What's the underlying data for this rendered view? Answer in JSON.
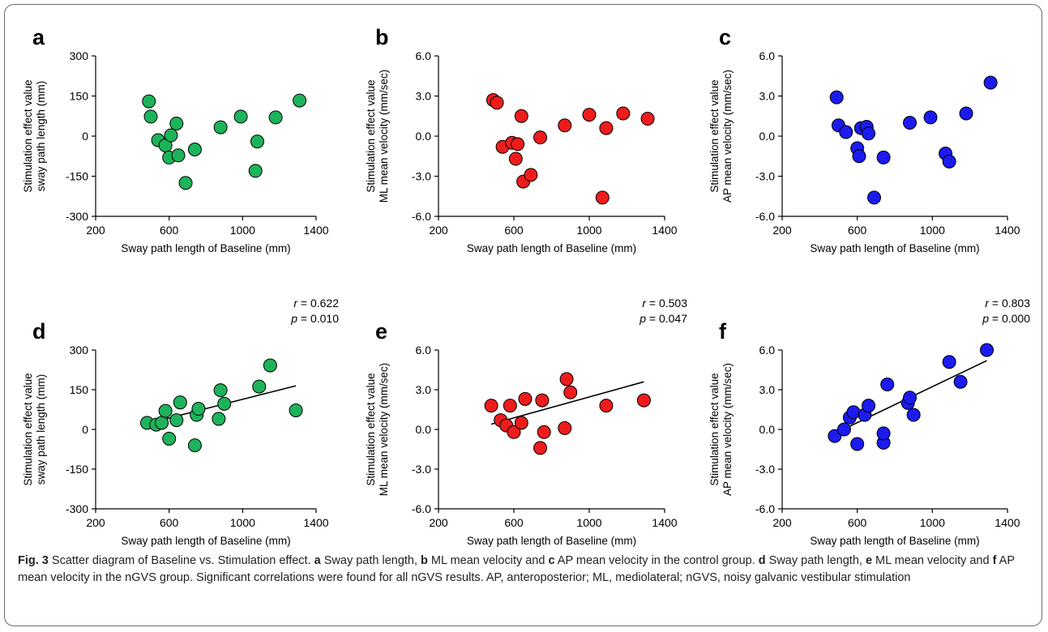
{
  "caption": {
    "fig_label": "Fig. 3",
    "intro": " Scatter diagram of Baseline vs. Stimulation effect. ",
    "a": "a",
    "a_text": " Sway path length, ",
    "b": "b",
    "b_text": " ML mean velocity and ",
    "c": "c",
    "c_text": " AP mean velocity in the control group. ",
    "d": "d",
    "d_text": " Sway path length, ",
    "e": "e",
    "e_text": " ML mean velocity and ",
    "f": "f",
    "f_text": " AP mean velocity in the nGVS group. Significant correlations were found for all nGVS results. AP, anteroposterior; ML, mediolateral; nGVS, noisy galvanic vestibular stimulation"
  },
  "chart_data": [
    {
      "panel": "a",
      "type": "scatter",
      "color": "#1db35a",
      "xlabel": "Sway path length of Baseline (mm)",
      "ylabel": [
        "Stimulation effect value",
        "sway path length (mm)"
      ],
      "xlim": [
        200,
        1400
      ],
      "xticks": [
        "200",
        "600",
        "1000",
        "1400"
      ],
      "ylim": [
        -300,
        300
      ],
      "yticks": [
        "-300",
        "-150",
        "0",
        "150",
        "300"
      ],
      "points": [
        [
          490,
          130
        ],
        [
          500,
          73
        ],
        [
          540,
          -15
        ],
        [
          580,
          -35
        ],
        [
          600,
          -80
        ],
        [
          610,
          3
        ],
        [
          640,
          47
        ],
        [
          650,
          -72
        ],
        [
          690,
          -175
        ],
        [
          740,
          -50
        ],
        [
          880,
          33
        ],
        [
          990,
          73
        ],
        [
          1070,
          -130
        ],
        [
          1080,
          -20
        ],
        [
          1180,
          70
        ],
        [
          1310,
          133
        ]
      ],
      "fit": null,
      "stats": null
    },
    {
      "panel": "b",
      "type": "scatter",
      "color": "#ee1c1c",
      "xlabel": "Sway path length of Baseline (mm)",
      "ylabel": [
        "Stimulation effect value",
        "ML mean velocity (mm/sec)"
      ],
      "xlim": [
        200,
        1400
      ],
      "xticks": [
        "200",
        "600",
        "1000",
        "1400"
      ],
      "ylim": [
        -6,
        6
      ],
      "yticks": [
        "-6.0",
        "-3.0",
        "0.0",
        "3.0",
        "6.0"
      ],
      "points": [
        [
          490,
          2.7
        ],
        [
          510,
          2.5
        ],
        [
          540,
          -0.8
        ],
        [
          590,
          -0.5
        ],
        [
          610,
          -1.7
        ],
        [
          620,
          -0.6
        ],
        [
          640,
          1.5
        ],
        [
          650,
          -3.4
        ],
        [
          690,
          -2.9
        ],
        [
          740,
          -0.1
        ],
        [
          870,
          0.8
        ],
        [
          1000,
          1.6
        ],
        [
          1070,
          -4.6
        ],
        [
          1090,
          0.6
        ],
        [
          1180,
          1.7
        ],
        [
          1310,
          1.3
        ]
      ],
      "fit": null,
      "stats": null
    },
    {
      "panel": "c",
      "type": "scatter",
      "color": "#1b1bef",
      "xlabel": "Sway path length of Baseline (mm)",
      "ylabel": [
        "Stimulation effect value",
        "AP mean velocity (mm/sec)"
      ],
      "xlim": [
        200,
        1400
      ],
      "xticks": [
        "200",
        "600",
        "1000",
        "1400"
      ],
      "ylim": [
        -6,
        6
      ],
      "yticks": [
        "-6.0",
        "-3.0",
        "0.0",
        "3.0",
        "6.0"
      ],
      "points": [
        [
          490,
          2.9
        ],
        [
          500,
          0.8
        ],
        [
          540,
          0.3
        ],
        [
          600,
          -0.9
        ],
        [
          610,
          -1.5
        ],
        [
          620,
          0.6
        ],
        [
          650,
          0.7
        ],
        [
          660,
          0.2
        ],
        [
          690,
          -4.6
        ],
        [
          740,
          -1.6
        ],
        [
          880,
          1.0
        ],
        [
          990,
          1.4
        ],
        [
          1070,
          -1.3
        ],
        [
          1090,
          -1.9
        ],
        [
          1180,
          1.7
        ],
        [
          1310,
          4.0
        ]
      ],
      "fit": null,
      "stats": null
    },
    {
      "panel": "d",
      "type": "scatter",
      "color": "#1db35a",
      "xlabel": "Sway path length of Baseline (mm)",
      "ylabel": [
        "Stimulation effect value",
        "sway path length (mm)"
      ],
      "xlim": [
        200,
        1400
      ],
      "xticks": [
        "200",
        "600",
        "1000",
        "1400"
      ],
      "ylim": [
        -300,
        300
      ],
      "yticks": [
        "-300",
        "-150",
        "0",
        "150",
        "300"
      ],
      "points": [
        [
          480,
          25
        ],
        [
          530,
          18
        ],
        [
          560,
          25
        ],
        [
          580,
          70
        ],
        [
          600,
          -35
        ],
        [
          640,
          35
        ],
        [
          660,
          102
        ],
        [
          740,
          -60
        ],
        [
          750,
          55
        ],
        [
          760,
          78
        ],
        [
          870,
          40
        ],
        [
          880,
          148
        ],
        [
          900,
          97
        ],
        [
          1090,
          162
        ],
        [
          1150,
          242
        ],
        [
          1290,
          72
        ]
      ],
      "fit": [
        [
          480,
          22
        ],
        [
          1290,
          165
        ]
      ],
      "stats": {
        "r": "0.622",
        "p": "0.010"
      }
    },
    {
      "panel": "e",
      "type": "scatter",
      "color": "#ee1c1c",
      "xlabel": "Sway path length of Baseline (mm)",
      "ylabel": [
        "Stimulation effect value",
        "ML mean velocity (mm/sec)"
      ],
      "xlim": [
        200,
        1400
      ],
      "xticks": [
        "200",
        "600",
        "1000",
        "1400"
      ],
      "ylim": [
        -6,
        6
      ],
      "yticks": [
        "-6.0",
        "-3.0",
        "0.0",
        "3.0",
        "6.0"
      ],
      "points": [
        [
          480,
          1.8
        ],
        [
          530,
          0.7
        ],
        [
          560,
          0.3
        ],
        [
          580,
          1.8
        ],
        [
          600,
          -0.2
        ],
        [
          640,
          0.5
        ],
        [
          660,
          2.3
        ],
        [
          740,
          -1.4
        ],
        [
          750,
          2.2
        ],
        [
          760,
          -0.2
        ],
        [
          870,
          0.1
        ],
        [
          880,
          3.8
        ],
        [
          900,
          2.8
        ],
        [
          1090,
          1.8
        ],
        [
          1290,
          2.2
        ]
      ],
      "fit": [
        [
          480,
          0.4
        ],
        [
          1290,
          3.6
        ]
      ],
      "stats": {
        "r": "0.503",
        "p": "0.047"
      }
    },
    {
      "panel": "f",
      "type": "scatter",
      "color": "#1b1bef",
      "xlabel": "Sway path length of Baseline (mm)",
      "ylabel": [
        "Stimulation effect value",
        "AP mean velocity (mm/sec)"
      ],
      "xlim": [
        200,
        1400
      ],
      "xticks": [
        "200",
        "600",
        "1000",
        "1400"
      ],
      "ylim": [
        -6,
        6
      ],
      "yticks": [
        "-6.0",
        "-3.0",
        "0.0",
        "3.0",
        "6.0"
      ],
      "points": [
        [
          480,
          -0.5
        ],
        [
          530,
          0.0
        ],
        [
          560,
          0.9
        ],
        [
          580,
          1.3
        ],
        [
          600,
          -1.1
        ],
        [
          640,
          1.1
        ],
        [
          660,
          1.8
        ],
        [
          740,
          -1.0
        ],
        [
          740,
          -0.3
        ],
        [
          760,
          3.4
        ],
        [
          870,
          2.0
        ],
        [
          880,
          2.4
        ],
        [
          900,
          1.1
        ],
        [
          1090,
          5.1
        ],
        [
          1150,
          3.6
        ],
        [
          1290,
          6.0
        ]
      ],
      "fit": [
        [
          480,
          -0.3
        ],
        [
          1290,
          5.2
        ]
      ],
      "stats": {
        "r": "0.803",
        "p": "0.000"
      }
    }
  ]
}
